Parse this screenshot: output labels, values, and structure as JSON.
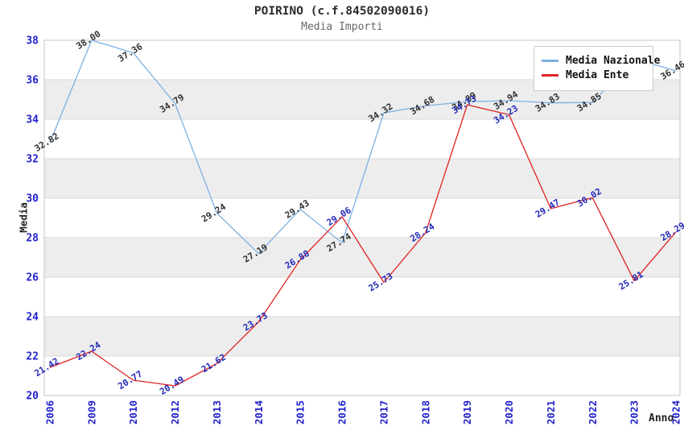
{
  "header": {
    "title": "POIRINO (c.f.84502090016)",
    "subtitle": "Media Importi"
  },
  "chart_data": {
    "type": "line",
    "title": "POIRINO (c.f.84502090016)",
    "subtitle": "Media Importi",
    "xlabel": "Anno",
    "ylabel": "Media",
    "categories": [
      "2006",
      "2009",
      "2010",
      "2012",
      "2013",
      "2014",
      "2015",
      "2016",
      "2017",
      "2018",
      "2019",
      "2020",
      "2021",
      "2022",
      "2023",
      "2024"
    ],
    "series": [
      {
        "name": "Media Nazionale",
        "color": "#7EB0E3",
        "label_color": "#303030",
        "values": [
          32.82,
          38.0,
          37.36,
          34.79,
          29.24,
          27.19,
          29.43,
          27.74,
          34.32,
          34.68,
          34.89,
          34.94,
          34.83,
          34.85,
          37.05,
          36.46
        ]
      },
      {
        "name": "Media Ente",
        "color": "#E02222",
        "label_color": "#2228B8",
        "values": [
          21.42,
          22.24,
          20.77,
          20.49,
          21.62,
          23.73,
          26.88,
          29.06,
          25.73,
          28.24,
          34.73,
          34.23,
          29.47,
          30.02,
          25.81,
          28.29
        ]
      }
    ],
    "ylim": [
      20,
      38
    ],
    "ytick_step": 2,
    "yticks": [
      20,
      22,
      24,
      26,
      28,
      30,
      32,
      34,
      36,
      38
    ],
    "grid": true,
    "band_color": "#EDEDED",
    "grid_color": "#D9D9D9",
    "border_color": "#C4C4C4",
    "tick_label_color": "#2222CC",
    "legend_position": "top-right"
  }
}
